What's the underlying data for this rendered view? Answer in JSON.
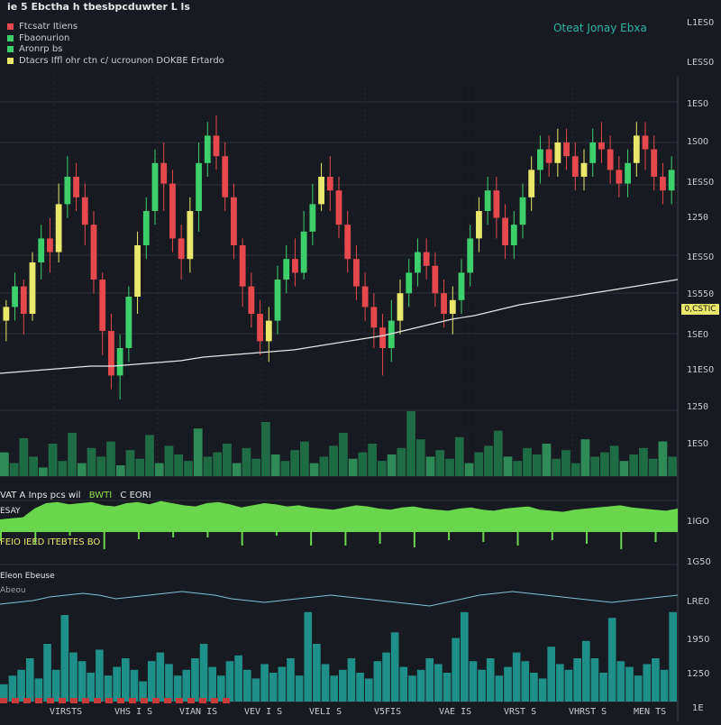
{
  "header": {
    "title": "ⅰe 5 Ebctha h tbesbpcduwter L ls",
    "top_right_title": "Oteat Jonay Ebxa"
  },
  "legend": [
    {
      "label": "Ftcsatr Itiens",
      "color": "#e5484d"
    },
    {
      "label": "Fbaonurion",
      "color": "#3ecf6d"
    },
    {
      "label": "Aronrp bs",
      "color": "#3ecf6d"
    },
    {
      "label": "Dtacrs Iffl ohr ctn  c/ ucrounon  DOKBE Ertardo",
      "color": "#e9e86b"
    }
  ],
  "price_axis": {
    "labels": [
      "L1ESO",
      "LESSO",
      "1ESO",
      "1SOO",
      "1ESSO",
      "1250",
      "1ESSO",
      "1S550",
      "1SEO",
      "11ESO",
      "1250",
      "1ESO"
    ],
    "price_tag": "0,CSTIC"
  },
  "panel2": {
    "title": "VAT A Inps pcs wil",
    "title_accent": "BWTI",
    "title_suffix": "C EORI",
    "sub_left": "ESAY",
    "sub_left2": "FEIO IEED ITEBTES BO",
    "y_labels": [
      "1IGO",
      "1G50"
    ]
  },
  "panel3": {
    "title": "Eleon Ebeuse",
    "sub_label": "Abeou",
    "y_labels": [
      "LRE0",
      "1950",
      "1250",
      "1E"
    ]
  },
  "x_axis": {
    "labels": [
      "VIRSTS",
      "VHS I S",
      "VIAN IS",
      "VEV I S",
      "VELI S",
      "V5FIS",
      "VAE IS",
      "VRST S",
      "VHRST S",
      "MEN TS"
    ]
  },
  "chart_data": [
    {
      "type": "candlestick",
      "title": "ⅰe 5 Ebctha h tbesbpcduwter L ls",
      "series": [
        {
          "name": "Ftcsatr Itiens",
          "type": "candlestick"
        },
        {
          "name": "Fbaonurion",
          "type": "line"
        },
        {
          "name": "Aronrp bs",
          "type": "volume"
        }
      ],
      "ylim": [
        0,
        100
      ],
      "candles": [
        [
          38,
          42,
          32,
          44
        ],
        [
          42,
          48,
          38,
          52
        ],
        [
          48,
          40,
          34,
          50
        ],
        [
          40,
          55,
          38,
          58
        ],
        [
          55,
          62,
          50,
          66
        ],
        [
          62,
          58,
          52,
          68
        ],
        [
          58,
          72,
          55,
          78
        ],
        [
          72,
          80,
          68,
          86
        ],
        [
          80,
          74,
          70,
          84
        ],
        [
          74,
          66,
          60,
          78
        ],
        [
          66,
          50,
          46,
          70
        ],
        [
          50,
          35,
          28,
          52
        ],
        [
          35,
          22,
          18,
          40
        ],
        [
          22,
          30,
          15,
          34
        ],
        [
          30,
          45,
          26,
          48
        ],
        [
          45,
          60,
          40,
          64
        ],
        [
          60,
          70,
          56,
          74
        ],
        [
          70,
          84,
          66,
          88
        ],
        [
          84,
          78,
          70,
          90
        ],
        [
          78,
          62,
          58,
          82
        ],
        [
          62,
          56,
          50,
          66
        ],
        [
          56,
          70,
          52,
          74
        ],
        [
          70,
          84,
          64,
          90
        ],
        [
          84,
          92,
          80,
          96
        ],
        [
          92,
          86,
          82,
          98
        ],
        [
          86,
          74,
          70,
          90
        ],
        [
          74,
          60,
          56,
          78
        ],
        [
          60,
          48,
          42,
          62
        ],
        [
          48,
          40,
          36,
          52
        ],
        [
          40,
          32,
          28,
          44
        ],
        [
          32,
          38,
          26,
          42
        ],
        [
          38,
          50,
          34,
          54
        ],
        [
          50,
          56,
          46,
          60
        ],
        [
          56,
          52,
          48,
          62
        ],
        [
          52,
          64,
          50,
          70
        ],
        [
          64,
          72,
          60,
          78
        ],
        [
          72,
          80,
          70,
          84
        ],
        [
          80,
          76,
          70,
          86
        ],
        [
          76,
          66,
          62,
          80
        ],
        [
          66,
          56,
          52,
          70
        ],
        [
          56,
          48,
          44,
          60
        ],
        [
          48,
          42,
          38,
          52
        ],
        [
          42,
          36,
          30,
          46
        ],
        [
          36,
          30,
          22,
          40
        ],
        [
          30,
          38,
          26,
          44
        ],
        [
          38,
          46,
          34,
          50
        ],
        [
          46,
          52,
          42,
          56
        ],
        [
          52,
          58,
          48,
          62
        ],
        [
          58,
          54,
          50,
          62
        ],
        [
          54,
          46,
          42,
          58
        ],
        [
          46,
          40,
          36,
          50
        ],
        [
          40,
          44,
          34,
          48
        ],
        [
          44,
          52,
          40,
          56
        ],
        [
          52,
          62,
          48,
          66
        ],
        [
          62,
          70,
          58,
          74
        ],
        [
          70,
          76,
          66,
          80
        ],
        [
          76,
          68,
          62,
          80
        ],
        [
          68,
          60,
          56,
          72
        ],
        [
          60,
          66,
          56,
          70
        ],
        [
          66,
          74,
          62,
          78
        ],
        [
          74,
          82,
          70,
          86
        ],
        [
          82,
          88,
          78,
          92
        ],
        [
          88,
          84,
          80,
          92
        ],
        [
          84,
          90,
          80,
          94
        ],
        [
          90,
          86,
          82,
          94
        ],
        [
          86,
          80,
          76,
          90
        ],
        [
          80,
          84,
          76,
          88
        ],
        [
          84,
          90,
          80,
          94
        ],
        [
          90,
          88,
          84,
          96
        ],
        [
          88,
          82,
          78,
          92
        ],
        [
          82,
          78,
          74,
          86
        ],
        [
          78,
          84,
          74,
          88
        ],
        [
          84,
          92,
          80,
          96
        ],
        [
          92,
          88,
          82,
          96
        ],
        [
          88,
          80,
          76,
          92
        ],
        [
          80,
          76,
          72,
          84
        ],
        [
          76,
          82,
          72,
          86
        ]
      ],
      "moving_average": [
        18,
        19,
        20,
        21,
        22,
        22,
        23,
        24,
        25,
        27,
        28,
        29,
        30,
        31,
        33,
        35,
        37,
        39,
        42,
        45,
        48,
        50,
        53,
        56,
        58,
        60,
        62,
        64,
        66,
        68,
        70
      ],
      "volume": [
        22,
        12,
        35,
        18,
        8,
        30,
        14,
        40,
        12,
        26,
        18,
        32,
        10,
        24,
        16,
        38,
        12,
        28,
        20,
        14,
        44,
        18,
        22,
        30,
        12,
        26,
        16,
        50,
        20,
        14,
        24,
        32,
        12,
        18,
        28,
        40,
        16,
        22,
        30,
        14,
        20,
        26,
        60,
        34,
        18,
        24,
        16,
        36,
        12,
        22,
        28,
        42,
        18,
        14,
        26,
        20,
        30,
        16,
        24,
        12,
        34,
        18,
        22,
        28,
        14,
        20,
        26,
        16,
        32,
        18
      ],
      "labels": {
        "xlabel": "",
        "ylabel": ""
      }
    },
    {
      "type": "area",
      "series": [
        {
          "name": "BWTI"
        }
      ],
      "values": [
        40,
        42,
        44,
        60,
        70,
        72,
        68,
        70,
        72,
        66,
        64,
        70,
        72,
        68,
        74,
        70,
        66,
        64,
        70,
        72,
        68,
        62,
        66,
        70,
        68,
        64,
        66,
        62,
        60,
        58,
        62,
        66,
        64,
        60,
        58,
        62,
        64,
        60,
        58,
        56,
        60,
        62,
        58,
        56,
        60,
        62,
        64,
        58,
        56,
        54,
        58,
        60,
        62,
        64,
        66,
        62,
        60,
        58,
        56,
        60
      ]
    },
    {
      "type": "bar+line",
      "series": [
        {
          "name": "Eleon Ebeuse"
        },
        {
          "name": "Abeou"
        }
      ],
      "values": [
        12,
        18,
        22,
        30,
        16,
        40,
        22,
        60,
        34,
        28,
        20,
        36,
        18,
        24,
        30,
        22,
        14,
        28,
        34,
        26,
        18,
        22,
        30,
        40,
        24,
        18,
        28,
        32,
        22,
        16,
        26,
        20,
        24,
        30,
        18,
        62,
        40,
        26,
        18,
        22,
        30,
        20,
        16,
        28,
        34,
        48,
        24,
        18,
        22,
        30,
        26,
        20,
        44,
        62,
        28,
        22,
        30,
        18,
        24,
        34,
        28,
        20,
        16,
        38,
        26,
        22,
        30,
        42,
        30,
        20,
        58,
        28,
        24,
        18,
        26,
        30,
        22,
        62
      ],
      "line": [
        70,
        72,
        74,
        78,
        80,
        82,
        80,
        76,
        78,
        80,
        82,
        84,
        82,
        80,
        76,
        74,
        72,
        74,
        76,
        78,
        80,
        78,
        76,
        74,
        72,
        70,
        68,
        72,
        76,
        80,
        82,
        84,
        82,
        80,
        78,
        76,
        74,
        72,
        74,
        76,
        78,
        80
      ]
    }
  ]
}
